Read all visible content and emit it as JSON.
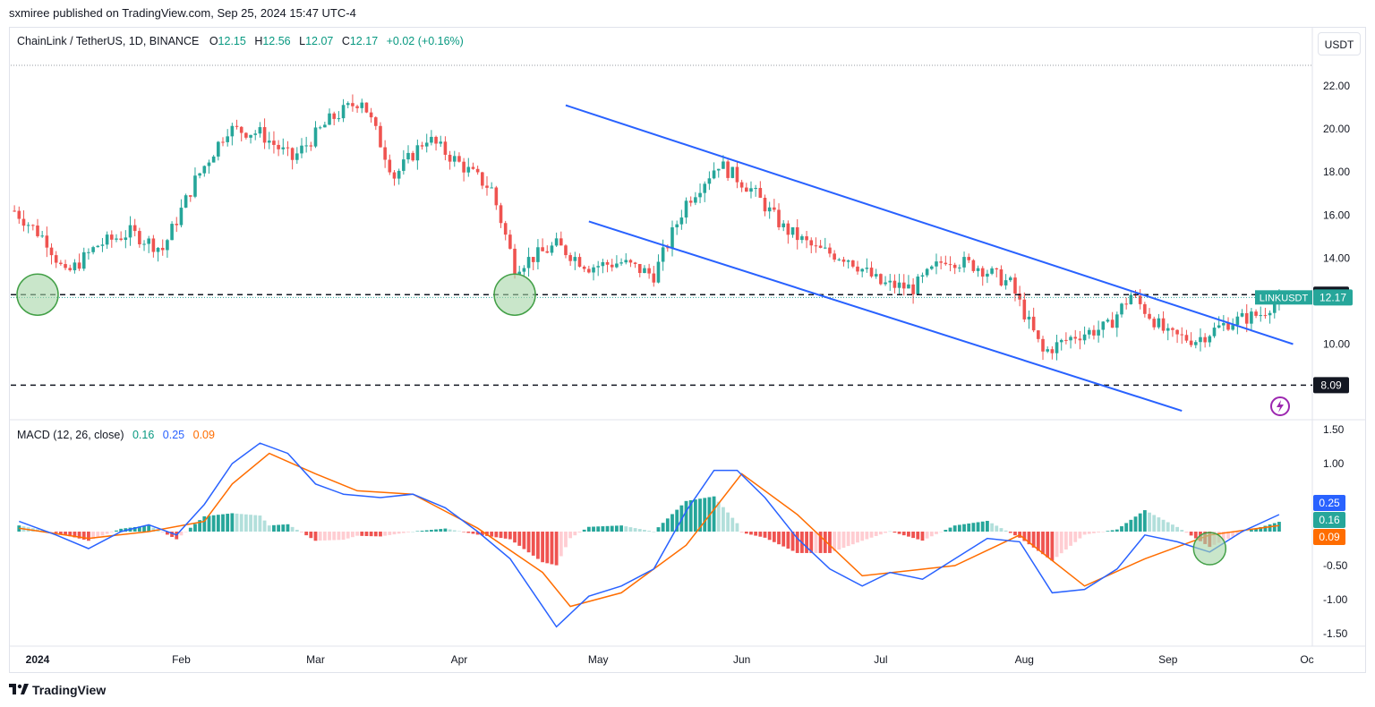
{
  "publisher_line": "sxmiree published on TradingView.com, Sep 25, 2024 15:47 UTC-4",
  "legend": {
    "symbol": "ChainLink / TetherUS, 1D, BINANCE",
    "open_label": "O",
    "open": "12.15",
    "high_label": "H",
    "high": "12.56",
    "low_label": "L",
    "low": "12.07",
    "close_label": "C",
    "close": "12.17",
    "change": "+0.02 (+0.16%)"
  },
  "currency_button": "USDT",
  "macd_legend": {
    "label": "MACD (12, 26, close)",
    "histogram": "0.16",
    "macd": "0.25",
    "signal": "0.09"
  },
  "brand": "TradingView",
  "icons": [
    "tradingview-logo-icon",
    "lightning-icon"
  ],
  "colors": {
    "up": "#26a69a",
    "down": "#ef5350",
    "trendline": "#2962ff",
    "macd_line": "#2962ff",
    "signal_line": "#ff6d00",
    "circle_fill": "#a5d6a7",
    "circle_stroke": "#43a047"
  },
  "chart_data": [
    {
      "type": "candlestick",
      "title": "ChainLink / TetherUS, 1D, BINANCE",
      "y_ticks": [
        "22.00",
        "20.00",
        "18.00",
        "16.00",
        "14.00",
        "10.00"
      ],
      "ylim": [
        7.0,
        23.0
      ],
      "x_ticks": [
        "2024",
        "Feb",
        "Mar",
        "Apr",
        "May",
        "Jun",
        "Jul",
        "Aug",
        "Sep",
        "Oc"
      ],
      "horizontal_levels": [
        {
          "value": 12.3,
          "label": "12.30",
          "style": "dashed"
        },
        {
          "value": 8.09,
          "label": "8.09",
          "style": "dashed"
        }
      ],
      "price_tag": {
        "label": "LINKUSDT",
        "value": "12.17"
      },
      "approx_closes": [
        {
          "date": "2023-12-27",
          "close": 16.2
        },
        {
          "date": "2024-01-03",
          "close": 14.8
        },
        {
          "date": "2024-01-07",
          "close": 13.2
        },
        {
          "date": "2024-01-14",
          "close": 14.6
        },
        {
          "date": "2024-01-21",
          "close": 15.2
        },
        {
          "date": "2024-01-28",
          "close": 14.4
        },
        {
          "date": "2024-02-04",
          "close": 17.6
        },
        {
          "date": "2024-02-11",
          "close": 20.0
        },
        {
          "date": "2024-02-18",
          "close": 19.8
        },
        {
          "date": "2024-02-25",
          "close": 18.6
        },
        {
          "date": "2024-03-04",
          "close": 20.4
        },
        {
          "date": "2024-03-11",
          "close": 21.4
        },
        {
          "date": "2024-03-18",
          "close": 17.8
        },
        {
          "date": "2024-03-25",
          "close": 19.6
        },
        {
          "date": "2024-04-01",
          "close": 18.4
        },
        {
          "date": "2024-04-08",
          "close": 17.2
        },
        {
          "date": "2024-04-13",
          "close": 13.6
        },
        {
          "date": "2024-04-22",
          "close": 14.6
        },
        {
          "date": "2024-04-29",
          "close": 13.6
        },
        {
          "date": "2024-05-06",
          "close": 13.8
        },
        {
          "date": "2024-05-13",
          "close": 13.2
        },
        {
          "date": "2024-05-20",
          "close": 16.6
        },
        {
          "date": "2024-05-27",
          "close": 18.4
        },
        {
          "date": "2024-06-03",
          "close": 17.2
        },
        {
          "date": "2024-06-10",
          "close": 15.4
        },
        {
          "date": "2024-06-17",
          "close": 14.4
        },
        {
          "date": "2024-06-24",
          "close": 14.0
        },
        {
          "date": "2024-07-01",
          "close": 12.8
        },
        {
          "date": "2024-07-08",
          "close": 12.6
        },
        {
          "date": "2024-07-15",
          "close": 14.0
        },
        {
          "date": "2024-07-22",
          "close": 13.6
        },
        {
          "date": "2024-07-29",
          "close": 12.8
        },
        {
          "date": "2024-08-05",
          "close": 9.6
        },
        {
          "date": "2024-08-12",
          "close": 10.4
        },
        {
          "date": "2024-08-19",
          "close": 10.8
        },
        {
          "date": "2024-08-24",
          "close": 12.3
        },
        {
          "date": "2024-09-01",
          "close": 10.4
        },
        {
          "date": "2024-09-07",
          "close": 10.2
        },
        {
          "date": "2024-09-14",
          "close": 11.0
        },
        {
          "date": "2024-09-21",
          "close": 11.4
        },
        {
          "date": "2024-09-25",
          "close": 12.17
        }
      ]
    },
    {
      "type": "line",
      "title": "MACD (12, 26, close)",
      "y_ticks": [
        "1.50",
        "1.00",
        "-0.50",
        "-1.00",
        "-1.50"
      ],
      "ylim": [
        -1.6,
        1.6
      ],
      "value_tags": [
        "0.25",
        "0.16",
        "0.09"
      ],
      "series": [
        {
          "name": "MACD",
          "values": [
            {
              "date": "2023-12-28",
              "value": 0.15
            },
            {
              "date": "2024-01-05",
              "value": -0.05
            },
            {
              "date": "2024-01-12",
              "value": -0.25
            },
            {
              "date": "2024-01-19",
              "value": 0.0
            },
            {
              "date": "2024-01-25",
              "value": 0.1
            },
            {
              "date": "2024-01-31",
              "value": -0.05
            },
            {
              "date": "2024-02-06",
              "value": 0.4
            },
            {
              "date": "2024-02-12",
              "value": 1.0
            },
            {
              "date": "2024-02-18",
              "value": 1.3
            },
            {
              "date": "2024-02-24",
              "value": 1.15
            },
            {
              "date": "2024-03-01",
              "value": 0.7
            },
            {
              "date": "2024-03-07",
              "value": 0.55
            },
            {
              "date": "2024-03-15",
              "value": 0.5
            },
            {
              "date": "2024-03-22",
              "value": 0.55
            },
            {
              "date": "2024-03-29",
              "value": 0.35
            },
            {
              "date": "2024-04-05",
              "value": 0.0
            },
            {
              "date": "2024-04-12",
              "value": -0.4
            },
            {
              "date": "2024-04-19",
              "value": -1.1
            },
            {
              "date": "2024-04-22",
              "value": -1.4
            },
            {
              "date": "2024-04-29",
              "value": -0.95
            },
            {
              "date": "2024-05-06",
              "value": -0.8
            },
            {
              "date": "2024-05-13",
              "value": -0.55
            },
            {
              "date": "2024-05-20",
              "value": 0.3
            },
            {
              "date": "2024-05-26",
              "value": 0.9
            },
            {
              "date": "2024-05-31",
              "value": 0.9
            },
            {
              "date": "2024-06-06",
              "value": 0.5
            },
            {
              "date": "2024-06-13",
              "value": -0.1
            },
            {
              "date": "2024-06-20",
              "value": -0.55
            },
            {
              "date": "2024-06-27",
              "value": -0.8
            },
            {
              "date": "2024-07-03",
              "value": -0.6
            },
            {
              "date": "2024-07-10",
              "value": -0.7
            },
            {
              "date": "2024-07-17",
              "value": -0.4
            },
            {
              "date": "2024-07-24",
              "value": -0.1
            },
            {
              "date": "2024-07-31",
              "value": -0.15
            },
            {
              "date": "2024-08-07",
              "value": -0.9
            },
            {
              "date": "2024-08-14",
              "value": -0.85
            },
            {
              "date": "2024-08-21",
              "value": -0.55
            },
            {
              "date": "2024-08-27",
              "value": -0.05
            },
            {
              "date": "2024-09-03",
              "value": -0.15
            },
            {
              "date": "2024-09-10",
              "value": -0.3
            },
            {
              "date": "2024-09-17",
              "value": 0.0
            },
            {
              "date": "2024-09-25",
              "value": 0.25
            }
          ]
        },
        {
          "name": "Signal",
          "values": [
            {
              "date": "2023-12-28",
              "value": 0.05
            },
            {
              "date": "2024-01-12",
              "value": -0.1
            },
            {
              "date": "2024-01-25",
              "value": 0.0
            },
            {
              "date": "2024-02-06",
              "value": 0.15
            },
            {
              "date": "2024-02-12",
              "value": 0.7
            },
            {
              "date": "2024-02-20",
              "value": 1.15
            },
            {
              "date": "2024-03-01",
              "value": 0.85
            },
            {
              "date": "2024-03-10",
              "value": 0.6
            },
            {
              "date": "2024-03-22",
              "value": 0.55
            },
            {
              "date": "2024-04-05",
              "value": 0.05
            },
            {
              "date": "2024-04-19",
              "value": -0.6
            },
            {
              "date": "2024-04-25",
              "value": -1.1
            },
            {
              "date": "2024-05-06",
              "value": -0.9
            },
            {
              "date": "2024-05-20",
              "value": -0.2
            },
            {
              "date": "2024-06-01",
              "value": 0.85
            },
            {
              "date": "2024-06-13",
              "value": 0.25
            },
            {
              "date": "2024-06-27",
              "value": -0.65
            },
            {
              "date": "2024-07-17",
              "value": -0.5
            },
            {
              "date": "2024-07-31",
              "value": -0.05
            },
            {
              "date": "2024-08-14",
              "value": -0.8
            },
            {
              "date": "2024-08-27",
              "value": -0.4
            },
            {
              "date": "2024-09-10",
              "value": -0.05
            },
            {
              "date": "2024-09-25",
              "value": 0.09
            }
          ]
        }
      ]
    }
  ]
}
